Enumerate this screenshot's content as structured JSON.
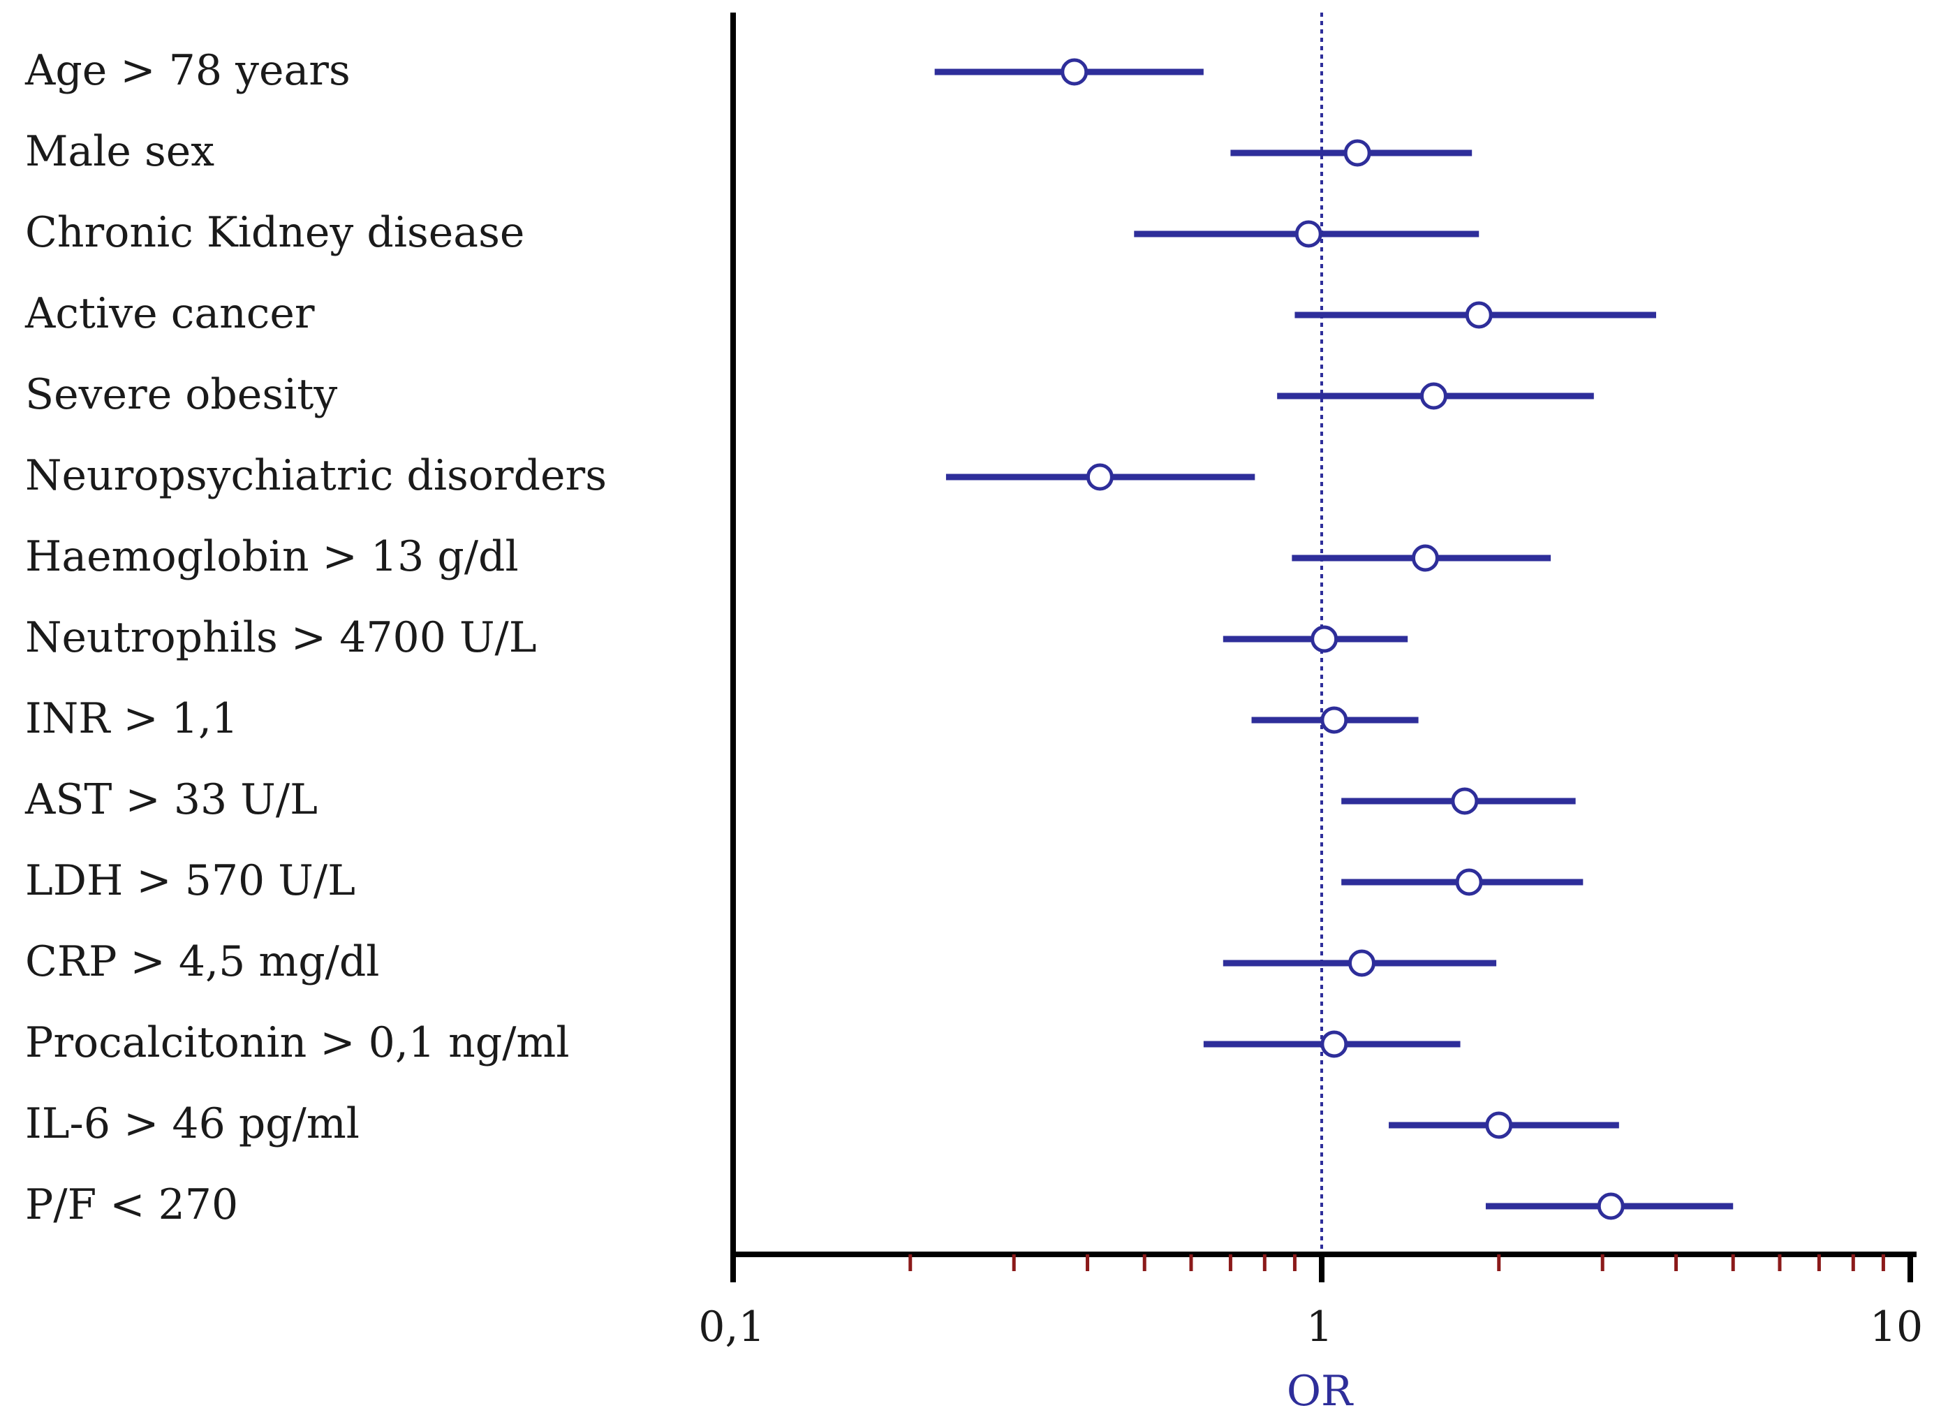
{
  "chart_data": {
    "type": "forest",
    "xscale": "log",
    "xlim": [
      0.1,
      10
    ],
    "xlabel": "OR",
    "xticks": [
      "0,1",
      "1",
      "10"
    ],
    "reference_line": 1,
    "rows": [
      {
        "label": "Age > 78 years",
        "or": 0.38,
        "lo": 0.22,
        "hi": 0.63
      },
      {
        "label": "Male sex",
        "or": 1.15,
        "lo": 0.7,
        "hi": 1.8
      },
      {
        "label": "Chronic Kidney disease",
        "or": 0.95,
        "lo": 0.48,
        "hi": 1.85
      },
      {
        "label": "Active cancer",
        "or": 1.85,
        "lo": 0.9,
        "hi": 3.7
      },
      {
        "label": "Severe obesity",
        "or": 1.55,
        "lo": 0.84,
        "hi": 2.9
      },
      {
        "label": "Neuropsychiatric disorders",
        "or": 0.42,
        "lo": 0.23,
        "hi": 0.77
      },
      {
        "label": "Haemoglobin > 13 g/dl",
        "or": 1.5,
        "lo": 0.89,
        "hi": 2.45
      },
      {
        "label": "Neutrophils > 4700 U/L",
        "or": 1.01,
        "lo": 0.68,
        "hi": 1.4
      },
      {
        "label": "INR > 1,1",
        "or": 1.05,
        "lo": 0.76,
        "hi": 1.46
      },
      {
        "label": "AST > 33 U/L",
        "or": 1.75,
        "lo": 1.08,
        "hi": 2.7
      },
      {
        "label": "LDH > 570 U/L",
        "or": 1.78,
        "lo": 1.08,
        "hi": 2.78
      },
      {
        "label": "CRP > 4,5 mg/dl",
        "or": 1.17,
        "lo": 0.68,
        "hi": 1.98
      },
      {
        "label": "Procalcitonin > 0,1 ng/ml",
        "or": 1.05,
        "lo": 0.63,
        "hi": 1.72
      },
      {
        "label": "IL-6 > 46 pg/ml",
        "or": 2.0,
        "lo": 1.3,
        "hi": 3.2
      },
      {
        "label": "P/F < 270",
        "or": 3.1,
        "lo": 1.9,
        "hi": 5.0
      }
    ],
    "colors": {
      "marker": "#2e2e9a",
      "axis": "#000000",
      "minor_tick": "#8b1a1a",
      "reference": "#2e2e9a",
      "axis_title": "#2e2e9a"
    }
  }
}
